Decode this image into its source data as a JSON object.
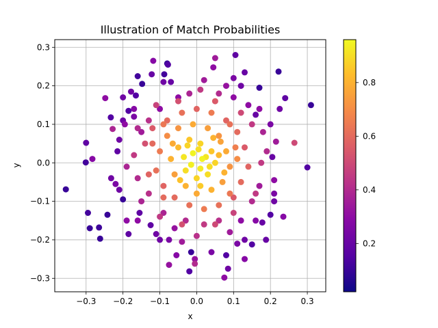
{
  "chart_data": {
    "type": "scatter",
    "title": "Illustration of Match Probabilities",
    "xlabel": "x",
    "ylabel": "y",
    "xlim": [
      -0.385,
      0.35
    ],
    "ylim": [
      -0.335,
      0.32
    ],
    "xticks": [
      -0.3,
      -0.2,
      -0.1,
      0.0,
      0.1,
      0.2,
      0.3
    ],
    "xtick_labels": [
      "−0.3",
      "−0.2",
      "−0.1",
      "0.0",
      "0.1",
      "0.2",
      "0.3"
    ],
    "yticks": [
      -0.3,
      -0.2,
      -0.1,
      0.0,
      0.1,
      0.2,
      0.3
    ],
    "ytick_labels": [
      "−0.3",
      "−0.2",
      "−0.1",
      "0.0",
      "0.1",
      "0.2",
      "0.3"
    ],
    "grid": true,
    "colormap": "plasma",
    "colorbar": {
      "range": [
        0.02,
        0.96
      ],
      "ticks": [
        0.2,
        0.4,
        0.6,
        0.8
      ],
      "tick_labels": [
        "0.2",
        "0.4",
        "0.6",
        "0.8"
      ]
    },
    "points": [
      [
        -0.355,
        -0.069,
        0.1
      ],
      [
        -0.301,
        0.001,
        0.12
      ],
      [
        -0.295,
        -0.13,
        0.12
      ],
      [
        -0.29,
        -0.17,
        0.1
      ],
      [
        -0.265,
        -0.168,
        0.11
      ],
      [
        -0.262,
        -0.197,
        0.1
      ],
      [
        -0.3,
        0.052,
        0.18
      ],
      [
        -0.283,
        0.01,
        0.28
      ],
      [
        -0.248,
        0.168,
        0.3
      ],
      [
        -0.233,
        0.118,
        0.15
      ],
      [
        -0.228,
        0.088,
        0.38
      ],
      [
        -0.242,
        -0.135,
        0.1
      ],
      [
        -0.232,
        -0.04,
        0.22
      ],
      [
        -0.2,
        0.17,
        0.22
      ],
      [
        -0.185,
        0.135,
        0.15
      ],
      [
        -0.178,
        0.185,
        0.22
      ],
      [
        -0.16,
        0.225,
        0.12
      ],
      [
        -0.165,
        0.175,
        0.15
      ],
      [
        -0.185,
        -0.185,
        0.18
      ],
      [
        -0.148,
        0.205,
        0.1
      ],
      [
        -0.122,
        0.23,
        0.2
      ],
      [
        -0.118,
        0.265,
        0.28
      ],
      [
        -0.088,
        0.23,
        0.12
      ],
      [
        -0.078,
        0.255,
        0.15
      ],
      [
        -0.07,
        0.21,
        0.2
      ],
      [
        -0.08,
        0.258,
        0.1
      ],
      [
        0.045,
        0.248,
        0.3
      ],
      [
        0.05,
        0.272,
        0.35
      ],
      [
        0.105,
        0.28,
        0.18
      ],
      [
        0.13,
        0.235,
        0.2
      ],
      [
        0.222,
        0.237,
        0.1
      ],
      [
        0.31,
        0.15,
        0.1
      ],
      [
        0.3,
        -0.012,
        0.15
      ],
      [
        0.265,
        0.052,
        0.5
      ],
      [
        0.24,
        0.168,
        0.18
      ],
      [
        0.225,
        0.14,
        0.22
      ],
      [
        0.215,
        0.055,
        0.35
      ],
      [
        0.205,
        0.015,
        0.2
      ],
      [
        0.21,
        -0.045,
        0.3
      ],
      [
        0.235,
        -0.14,
        0.28
      ],
      [
        0.21,
        -0.1,
        0.22
      ],
      [
        0.2,
        -0.135,
        0.15
      ],
      [
        0.188,
        -0.2,
        0.2
      ],
      [
        0.178,
        -0.155,
        0.2
      ],
      [
        0.15,
        -0.212,
        0.15
      ],
      [
        0.13,
        -0.2,
        0.22
      ],
      [
        0.13,
        -0.25,
        0.28
      ],
      [
        0.085,
        -0.275,
        0.22
      ],
      [
        0.075,
        -0.298,
        0.3
      ],
      [
        0.08,
        -0.24,
        0.15
      ],
      [
        0.04,
        -0.232,
        0.25
      ],
      [
        -0.005,
        -0.25,
        0.32
      ],
      [
        -0.005,
        -0.262,
        0.4
      ],
      [
        -0.055,
        -0.24,
        0.28
      ],
      [
        -0.075,
        -0.265,
        0.32
      ],
      [
        -0.02,
        -0.282,
        0.15
      ],
      [
        -0.015,
        -0.232,
        0.1
      ],
      [
        -0.04,
        -0.205,
        0.35
      ],
      [
        -0.075,
        -0.2,
        0.25
      ],
      [
        -0.11,
        -0.185,
        0.22
      ],
      [
        -0.125,
        -0.162,
        0.18
      ],
      [
        -0.155,
        -0.13,
        0.18
      ],
      [
        -0.19,
        -0.15,
        0.3
      ],
      [
        -0.2,
        -0.095,
        0.1
      ],
      [
        -0.22,
        -0.055,
        0.25
      ],
      [
        -0.215,
        0.03,
        0.18
      ],
      [
        -0.21,
        0.06,
        0.22
      ],
      [
        -0.195,
        0.1,
        0.3
      ],
      [
        -0.17,
        0.12,
        0.25
      ],
      [
        -0.15,
        0.08,
        0.35
      ],
      [
        0.17,
        0.195,
        0.1
      ],
      [
        0.16,
        0.125,
        0.2
      ],
      [
        0.14,
        0.15,
        0.3
      ],
      [
        0.12,
        0.2,
        0.22
      ],
      [
        0.1,
        0.17,
        0.3
      ],
      [
        0.08,
        0.2,
        0.32
      ],
      [
        0.06,
        0.18,
        0.4
      ],
      [
        0.02,
        0.215,
        0.35
      ],
      [
        -0.02,
        0.18,
        0.38
      ],
      [
        -0.05,
        0.17,
        0.3
      ],
      [
        -0.1,
        0.14,
        0.3
      ],
      [
        -0.13,
        0.11,
        0.42
      ],
      [
        0.18,
        0.08,
        0.38
      ],
      [
        0.175,
        0.0,
        0.45
      ],
      [
        0.17,
        -0.06,
        0.35
      ],
      [
        0.15,
        -0.1,
        0.4
      ],
      [
        0.12,
        -0.15,
        0.3
      ],
      [
        0.09,
        -0.18,
        0.35
      ],
      [
        0.06,
        -0.15,
        0.42
      ],
      [
        0.02,
        -0.16,
        0.45
      ],
      [
        -0.03,
        -0.15,
        0.4
      ],
      [
        -0.06,
        -0.17,
        0.32
      ],
      [
        -0.09,
        -0.13,
        0.38
      ],
      [
        -0.13,
        -0.08,
        0.42
      ],
      [
        -0.16,
        -0.04,
        0.4
      ],
      [
        -0.17,
        0.02,
        0.45
      ],
      [
        -0.14,
        0.05,
        0.52
      ],
      [
        -0.12,
        0.09,
        0.55
      ],
      [
        -0.08,
        0.11,
        0.6
      ],
      [
        -0.04,
        0.13,
        0.62
      ],
      [
        0.0,
        0.14,
        0.58
      ],
      [
        0.04,
        0.13,
        0.65
      ],
      [
        0.08,
        0.11,
        0.58
      ],
      [
        0.11,
        0.08,
        0.6
      ],
      [
        0.13,
        0.04,
        0.55
      ],
      [
        0.14,
        -0.01,
        0.58
      ],
      [
        0.12,
        -0.05,
        0.6
      ],
      [
        0.1,
        -0.09,
        0.55
      ],
      [
        0.06,
        -0.11,
        0.62
      ],
      [
        0.02,
        -0.12,
        0.65
      ],
      [
        -0.02,
        -0.11,
        0.62
      ],
      [
        -0.06,
        -0.09,
        0.6
      ],
      [
        -0.09,
        -0.06,
        0.58
      ],
      [
        -0.11,
        -0.02,
        0.62
      ],
      [
        -0.1,
        0.03,
        0.65
      ],
      [
        -0.08,
        0.07,
        0.7
      ],
      [
        -0.05,
        0.09,
        0.72
      ],
      [
        -0.01,
        0.1,
        0.78
      ],
      [
        0.03,
        0.09,
        0.75
      ],
      [
        0.06,
        0.07,
        0.72
      ],
      [
        0.08,
        0.03,
        0.78
      ],
      [
        0.09,
        -0.01,
        0.72
      ],
      [
        0.07,
        -0.05,
        0.75
      ],
      [
        0.04,
        -0.07,
        0.8
      ],
      [
        0.0,
        -0.08,
        0.78
      ],
      [
        -0.03,
        -0.06,
        0.8
      ],
      [
        -0.06,
        -0.03,
        0.75
      ],
      [
        -0.07,
        0.01,
        0.8
      ],
      [
        -0.05,
        0.04,
        0.82
      ],
      [
        -0.02,
        0.06,
        0.85
      ],
      [
        0.01,
        0.05,
        0.88
      ],
      [
        0.04,
        0.03,
        0.85
      ],
      [
        0.05,
        0.0,
        0.88
      ],
      [
        0.03,
        -0.03,
        0.9
      ],
      [
        0.0,
        -0.04,
        0.88
      ],
      [
        -0.03,
        -0.02,
        0.9
      ],
      [
        -0.035,
        0.015,
        0.92
      ],
      [
        -0.01,
        0.025,
        0.95
      ],
      [
        0.015,
        0.01,
        0.95
      ],
      [
        0.01,
        -0.015,
        0.93
      ],
      [
        -0.015,
        -0.005,
        0.94
      ],
      [
        0.025,
        0.015,
        0.92
      ],
      [
        0.005,
        0.035,
        0.9
      ],
      [
        -0.025,
        0.045,
        0.88
      ],
      [
        0.035,
        -0.01,
        0.9
      ],
      [
        0.06,
        0.02,
        0.82
      ],
      [
        0.075,
        -0.025,
        0.8
      ],
      [
        0.065,
        0.055,
        0.76
      ],
      [
        -0.045,
        -0.045,
        0.84
      ],
      [
        -0.065,
        0.05,
        0.78
      ],
      [
        0.01,
        -0.06,
        0.86
      ],
      [
        0.045,
        0.065,
        0.8
      ],
      [
        0.105,
        0.04,
        0.66
      ],
      [
        0.11,
        0.01,
        0.7
      ],
      [
        -0.12,
        0.05,
        0.6
      ],
      [
        -0.13,
        -0.03,
        0.58
      ],
      [
        0.09,
        0.1,
        0.62
      ],
      [
        -0.09,
        0.1,
        0.64
      ],
      [
        0.09,
        -0.08,
        0.64
      ],
      [
        -0.09,
        -0.09,
        0.6
      ],
      [
        0.15,
        0.1,
        0.45
      ],
      [
        -0.16,
        0.09,
        0.4
      ],
      [
        0.16,
        -0.08,
        0.45
      ],
      [
        -0.15,
        -0.1,
        0.38
      ],
      [
        0.12,
        0.13,
        0.5
      ],
      [
        -0.11,
        0.15,
        0.48
      ],
      [
        0.1,
        -0.13,
        0.48
      ],
      [
        -0.1,
        -0.14,
        0.45
      ],
      [
        0.05,
        0.16,
        0.55
      ],
      [
        -0.05,
        0.16,
        0.52
      ],
      [
        0.05,
        -0.16,
        0.5
      ],
      [
        -0.04,
        -0.16,
        0.52
      ],
      [
        0.19,
        0.03,
        0.4
      ],
      [
        -0.19,
        -0.01,
        0.38
      ],
      [
        0.01,
        0.19,
        0.45
      ],
      [
        0.0,
        -0.19,
        0.42
      ],
      [
        0.17,
        0.14,
        0.3
      ],
      [
        -0.17,
        0.14,
        0.28
      ],
      [
        0.16,
        -0.15,
        0.28
      ],
      [
        -0.16,
        -0.15,
        0.3
      ],
      [
        0.2,
        0.1,
        0.25
      ],
      [
        -0.2,
        0.11,
        0.22
      ],
      [
        0.21,
        -0.08,
        0.25
      ],
      [
        -0.21,
        -0.07,
        0.22
      ],
      [
        0.1,
        0.22,
        0.25
      ],
      [
        -0.09,
        0.21,
        0.22
      ],
      [
        0.11,
        -0.21,
        0.25
      ],
      [
        -0.1,
        -0.2,
        0.22
      ]
    ]
  }
}
